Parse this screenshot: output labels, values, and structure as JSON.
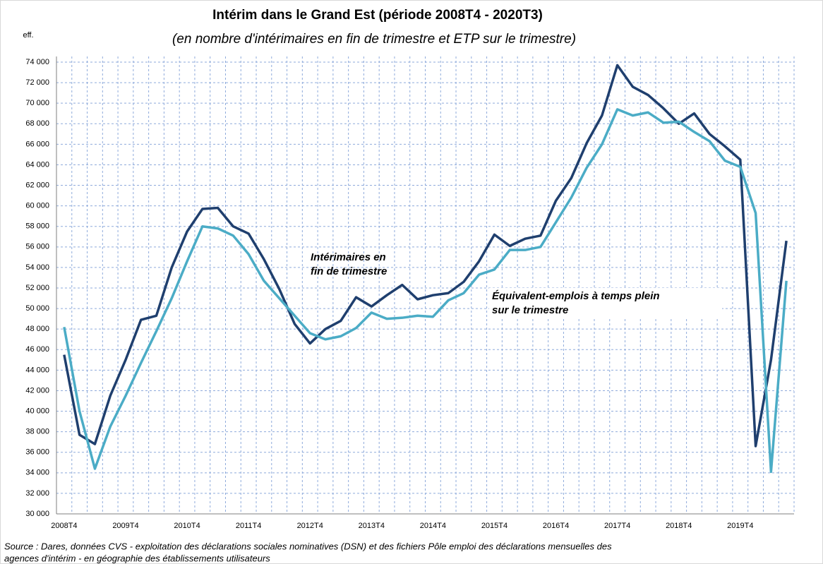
{
  "chart_data": {
    "type": "line",
    "title": "Intérim dans le Grand Est (période 2008T4 - 2020T3)",
    "subtitle": "(en nombre d'intérimaires en fin de trimestre et ETP sur le trimestre)",
    "y_axis_label": "eff.",
    "categories": [
      "2008T4",
      null,
      null,
      null,
      "2009T4",
      null,
      null,
      null,
      "2010T4",
      null,
      null,
      null,
      "2011T4",
      null,
      null,
      null,
      "2012T4",
      null,
      null,
      null,
      "2013T4",
      null,
      null,
      null,
      "2014T4",
      null,
      null,
      null,
      "2015T4",
      null,
      null,
      null,
      "2016T4",
      null,
      null,
      null,
      "2017T4",
      null,
      null,
      null,
      "2018T4",
      null,
      null,
      null,
      "2019T4",
      null,
      null,
      null
    ],
    "series": [
      {
        "name": [
          "Intérimaires en",
          "fin de trimestre"
        ],
        "color": "#1f3f6e",
        "values": [
          45500,
          37700,
          36800,
          41500,
          45000,
          48900,
          49300,
          54000,
          57500,
          59700,
          59800,
          58000,
          57300,
          54800,
          51900,
          48500,
          46600,
          48000,
          48800,
          51100,
          50200,
          51300,
          52300,
          50900,
          51300,
          51500,
          52600,
          54600,
          57200,
          56100,
          56800,
          57100,
          60500,
          62700,
          66100,
          68800,
          73700,
          71600,
          70800,
          69500,
          68000,
          69000,
          67000,
          65800,
          64500,
          36600,
          45000,
          56600
        ]
      },
      {
        "name": [
          "Équivalent-emplois à temps plein",
          "sur le trimestre"
        ],
        "color": "#4bacc6",
        "values": [
          48200,
          40000,
          34400,
          38500,
          41500,
          44700,
          47800,
          51000,
          54600,
          58000,
          57800,
          57100,
          55300,
          52700,
          51000,
          49300,
          47600,
          47000,
          47300,
          48100,
          49600,
          49000,
          49100,
          49300,
          49200,
          50800,
          51500,
          53300,
          53800,
          55700,
          55700,
          56000,
          58400,
          60800,
          63700,
          66000,
          69400,
          68800,
          69100,
          68100,
          68200,
          67200,
          66300,
          64400,
          63800,
          59300,
          34100,
          52700
        ]
      }
    ],
    "ylim": [
      30000,
      74000
    ],
    "yticks": [
      {
        "value": 30000,
        "label": "30 000"
      },
      {
        "value": 32000,
        "label": "32 000"
      },
      {
        "value": 34000,
        "label": "34 000"
      },
      {
        "value": 36000,
        "label": "36 000"
      },
      {
        "value": 38000,
        "label": "38 000"
      },
      {
        "value": 40000,
        "label": "40 000"
      },
      {
        "value": 42000,
        "label": "42 000"
      },
      {
        "value": 44000,
        "label": "44 000"
      },
      {
        "value": 46000,
        "label": "46 000"
      },
      {
        "value": 48000,
        "label": "48 000"
      },
      {
        "value": 50000,
        "label": "50 000"
      },
      {
        "value": 52000,
        "label": "52 000"
      },
      {
        "value": 54000,
        "label": "54 000"
      },
      {
        "value": 56000,
        "label": "56 000"
      },
      {
        "value": 58000,
        "label": "58 000"
      },
      {
        "value": 60000,
        "label": "60 000"
      },
      {
        "value": 62000,
        "label": "62 000"
      },
      {
        "value": 64000,
        "label": "64 000"
      },
      {
        "value": 66000,
        "label": "66 000"
      },
      {
        "value": 68000,
        "label": "68 000"
      },
      {
        "value": 70000,
        "label": "70 000"
      },
      {
        "value": 72000,
        "label": "72 000"
      },
      {
        "value": 74000,
        "label": "74 000"
      }
    ],
    "grid": true,
    "source": [
      "Source : Dares, données CVS - exploitation des déclarations sociales nominatives (DSN) et des fichiers Pôle emploi des déclarations mensuelles des",
      "agences d'intérim - en géographie des établissements utilisateurs"
    ]
  }
}
